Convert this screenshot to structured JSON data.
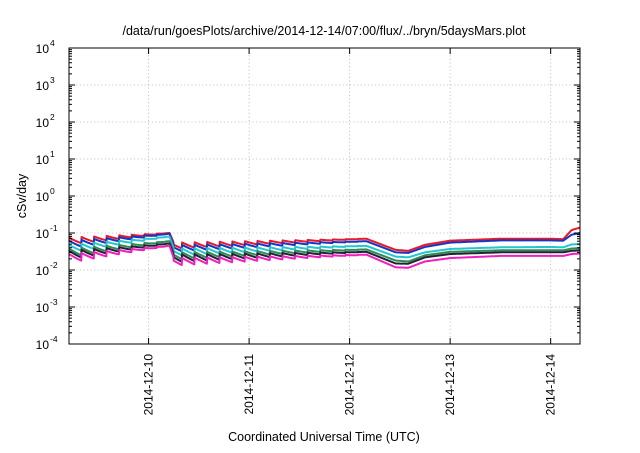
{
  "chart_data": {
    "type": "line",
    "title": "/data/run/goesPlots/archive/2014-12-14/07:00/flux/../bryn/5daysMars.plot",
    "xlabel": "Coordinated Universal Time (UTC)",
    "ylabel": "cSv/day",
    "x_range": [
      "2014-12-09 05:00",
      "2014-12-14 07:00"
    ],
    "ylim": [
      0.0001,
      10000
    ],
    "y_scale": "log",
    "grid": true,
    "x_ticks": [
      "2014-12-10",
      "2014-12-11",
      "2014-12-12",
      "2014-12-13",
      "2014-12-14"
    ],
    "y_ticks": [
      {
        "base": "10",
        "exp": "-4",
        "value": 0.0001
      },
      {
        "base": "10",
        "exp": "-3",
        "value": 0.001
      },
      {
        "base": "10",
        "exp": "-2",
        "value": 0.01
      },
      {
        "base": "10",
        "exp": "-1",
        "value": 0.1
      },
      {
        "base": "10",
        "exp": "0",
        "value": 1
      },
      {
        "base": "10",
        "exp": "1",
        "value": 10
      },
      {
        "base": "10",
        "exp": "2",
        "value": 100
      },
      {
        "base": "10",
        "exp": "3",
        "value": 1000
      },
      {
        "base": "10",
        "exp": "4",
        "value": 10000
      }
    ],
    "series": [
      {
        "color": "#e8192c",
        "shape": [
          [
            "2014-12-09 05:00",
            0.075,
            0.048
          ],
          [
            "2014-12-10 05:00",
            0.1,
            0.1
          ],
          [
            "2014-12-10 06:00",
            0.055,
            0.037
          ],
          [
            "2014-12-12 04:00",
            0.07,
            0.07
          ],
          [
            "2014-12-12 11:00",
            0.035,
            0.035
          ],
          [
            "2014-12-12 14:00",
            0.033,
            0.033
          ],
          [
            "2014-12-12 18:00",
            0.048,
            0.048
          ],
          [
            "2014-12-13 00:00",
            0.062,
            0.062
          ],
          [
            "2014-12-13 12:00",
            0.07,
            0.07
          ],
          [
            "2014-12-14 00:00",
            0.07,
            0.07
          ],
          [
            "2014-12-14 03:00",
            0.068,
            0.068
          ],
          [
            "2014-12-14 05:00",
            0.12,
            0.12
          ],
          [
            "2014-12-14 07:00",
            0.14,
            0.14
          ]
        ]
      },
      {
        "color": "#1535c4",
        "shape": [
          [
            "2014-12-09 05:00",
            0.062,
            0.038
          ],
          [
            "2014-12-10 05:00",
            0.095,
            0.095
          ],
          [
            "2014-12-10 06:00",
            0.047,
            0.031
          ],
          [
            "2014-12-12 04:00",
            0.06,
            0.06
          ],
          [
            "2014-12-12 11:00",
            0.03,
            0.03
          ],
          [
            "2014-12-12 14:00",
            0.029,
            0.029
          ],
          [
            "2014-12-12 18:00",
            0.042,
            0.042
          ],
          [
            "2014-12-13 00:00",
            0.055,
            0.055
          ],
          [
            "2014-12-13 12:00",
            0.063,
            0.063
          ],
          [
            "2014-12-14 00:00",
            0.063,
            0.063
          ],
          [
            "2014-12-14 03:00",
            0.062,
            0.062
          ],
          [
            "2014-12-14 05:00",
            0.09,
            0.09
          ],
          [
            "2014-12-14 07:00",
            0.1,
            0.1
          ]
        ]
      },
      {
        "color": "#26c6cf",
        "shape": [
          [
            "2014-12-09 05:00",
            0.048,
            0.029
          ],
          [
            "2014-12-10 05:00",
            0.08,
            0.08
          ],
          [
            "2014-12-10 06:00",
            0.038,
            0.024
          ],
          [
            "2014-12-12 04:00",
            0.045,
            0.045
          ],
          [
            "2014-12-12 11:00",
            0.023,
            0.023
          ],
          [
            "2014-12-12 14:00",
            0.022,
            0.022
          ],
          [
            "2014-12-12 18:00",
            0.03,
            0.03
          ],
          [
            "2014-12-13 00:00",
            0.037,
            0.037
          ],
          [
            "2014-12-13 12:00",
            0.041,
            0.041
          ],
          [
            "2014-12-14 00:00",
            0.042,
            0.042
          ],
          [
            "2014-12-14 03:00",
            0.041,
            0.041
          ],
          [
            "2014-12-14 05:00",
            0.049,
            0.049
          ],
          [
            "2014-12-14 07:00",
            0.05,
            0.05
          ]
        ]
      },
      {
        "color": "#2e8b57",
        "shape": [
          [
            "2014-12-09 05:00",
            0.038,
            0.022
          ],
          [
            "2014-12-10 05:00",
            0.06,
            0.06
          ],
          [
            "2014-12-10 06:00",
            0.03,
            0.019
          ],
          [
            "2014-12-12 04:00",
            0.036,
            0.036
          ],
          [
            "2014-12-12 11:00",
            0.018,
            0.018
          ],
          [
            "2014-12-12 14:00",
            0.017,
            0.017
          ],
          [
            "2014-12-12 18:00",
            0.025,
            0.025
          ],
          [
            "2014-12-13 00:00",
            0.031,
            0.031
          ],
          [
            "2014-12-13 12:00",
            0.034,
            0.034
          ],
          [
            "2014-12-14 00:00",
            0.034,
            0.034
          ],
          [
            "2014-12-14 03:00",
            0.034,
            0.034
          ],
          [
            "2014-12-14 05:00",
            0.038,
            0.038
          ],
          [
            "2014-12-14 07:00",
            0.039,
            0.039
          ]
        ]
      },
      {
        "color": "#222233",
        "shape": [
          [
            "2014-12-09 05:00",
            0.033,
            0.019
          ],
          [
            "2014-12-10 05:00",
            0.052,
            0.052
          ],
          [
            "2014-12-10 06:00",
            0.026,
            0.016
          ],
          [
            "2014-12-12 04:00",
            0.031,
            0.031
          ],
          [
            "2014-12-12 11:00",
            0.015,
            0.015
          ],
          [
            "2014-12-12 14:00",
            0.0148,
            0.0148
          ],
          [
            "2014-12-12 18:00",
            0.022,
            0.022
          ],
          [
            "2014-12-13 00:00",
            0.027,
            0.027
          ],
          [
            "2014-12-13 12:00",
            0.03,
            0.03
          ],
          [
            "2014-12-14 00:00",
            0.03,
            0.03
          ],
          [
            "2014-12-14 03:00",
            0.03,
            0.03
          ],
          [
            "2014-12-14 05:00",
            0.033,
            0.033
          ],
          [
            "2014-12-14 07:00",
            0.034,
            0.034
          ]
        ]
      },
      {
        "color": "#f01fc0",
        "shape": [
          [
            "2014-12-09 05:00",
            0.027,
            0.0155
          ],
          [
            "2014-12-10 05:00",
            0.045,
            0.045
          ],
          [
            "2014-12-10 06:00",
            0.021,
            0.013
          ],
          [
            "2014-12-12 04:00",
            0.026,
            0.026
          ],
          [
            "2014-12-12 11:00",
            0.0118,
            0.0118
          ],
          [
            "2014-12-12 14:00",
            0.0115,
            0.0115
          ],
          [
            "2014-12-12 18:00",
            0.017,
            0.017
          ],
          [
            "2014-12-13 00:00",
            0.021,
            0.021
          ],
          [
            "2014-12-13 12:00",
            0.024,
            0.024
          ],
          [
            "2014-12-14 00:00",
            0.024,
            0.024
          ],
          [
            "2014-12-14 03:00",
            0.024,
            0.024
          ],
          [
            "2014-12-14 05:00",
            0.027,
            0.027
          ],
          [
            "2014-12-14 07:00",
            0.028,
            0.028
          ]
        ]
      }
    ],
    "sawtooth_period_hours": 3
  }
}
